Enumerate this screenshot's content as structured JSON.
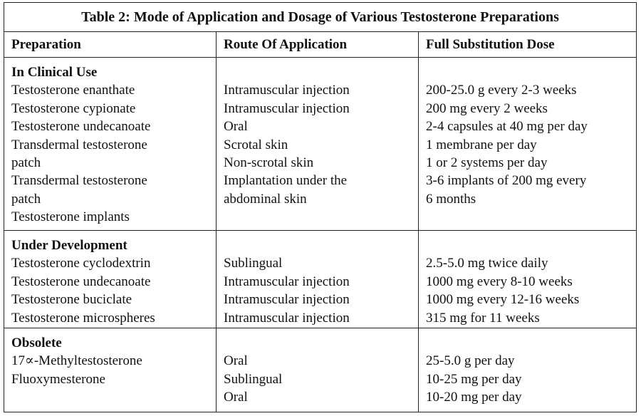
{
  "title": "Table 2: Mode of Application and Dosage of Various Testosterone Preparations",
  "header": [
    "Preparation",
    "Route Of Application",
    "Full Substitution Dose"
  ],
  "sections": [
    {
      "label": "In Clinical Use",
      "preparations": [
        "Testosterone enanthate",
        "Testosterone cypionate",
        "Testosterone undecanoate",
        "Transdermal testosterone",
        "patch",
        "Transdermal testosterone",
        "patch",
        "Testosterone implants"
      ],
      "routes": [
        "Intramuscular injection",
        "Intramuscular injection",
        "Oral",
        "Scrotal skin",
        "Non-scrotal skin",
        "Implantation under the",
        "abdominal skin"
      ],
      "doses": [
        "200-25.0 g every 2-3 weeks",
        "200 mg every 2 weeks",
        "2-4 capsules at 40 mg per day",
        "1 membrane per day",
        "1 or 2 systems per day",
        "3-6 implants of 200 mg every",
        "6 months"
      ]
    },
    {
      "label": "Under Development",
      "preparations": [
        "Testosterone cyclodextrin",
        "Testosterone undecanoate",
        "Testosterone buciclate",
        "Testosterone microspheres"
      ],
      "routes": [
        "Sublingual",
        "Intramuscular injection",
        "Intramuscular injection",
        "Intramuscular injection"
      ],
      "doses": [
        "2.5-5.0 mg twice daily",
        "1000 mg every 8-10 weeks",
        "1000 mg every 12-16 weeks",
        "315 mg for 11 weeks"
      ]
    },
    {
      "label": "Obsolete",
      "preparations": [
        "17∝-Methyltestosterone",
        "Fluoxymesterone"
      ],
      "routes": [
        "Oral",
        "Sublingual",
        "Oral"
      ],
      "doses": [
        "25-5.0 g per day",
        "10-25 mg per day",
        "10-20 mg per day"
      ]
    }
  ]
}
